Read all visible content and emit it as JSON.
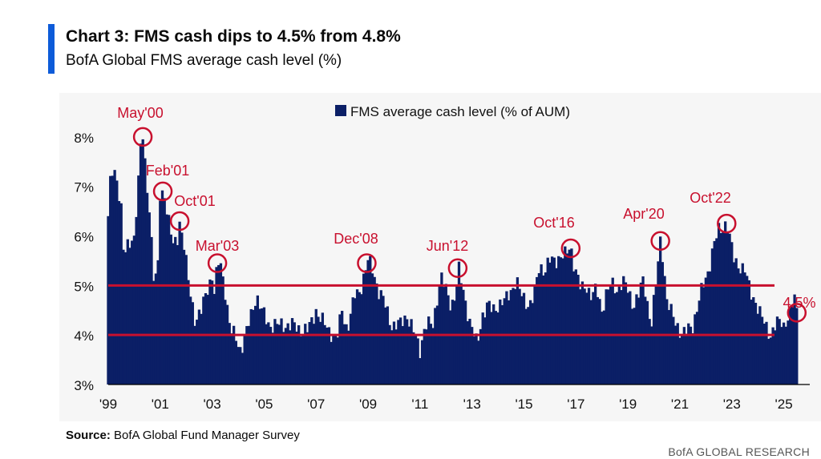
{
  "header": {
    "title": "Chart 3: FMS cash dips to 4.5% from 4.8%",
    "subtitle": "BofA Global FMS average cash level (%)"
  },
  "footer": {
    "source_label": "Source:",
    "source_text": " BofA Global Fund Manager Survey",
    "brand": "BofA GLOBAL RESEARCH"
  },
  "colors": {
    "bar": "#0b1f66",
    "reference_line": "#c8102e",
    "annotation": "#c8102e",
    "title_bar": "#0d5bd9"
  },
  "chart_data": {
    "type": "bar",
    "legend": "FMS average cash level (% of AUM)",
    "legend_position": "top-center",
    "ylim": [
      3,
      8.5
    ],
    "yticks": [
      3,
      4,
      5,
      6,
      7,
      8
    ],
    "ytick_labels": [
      "3%",
      "4%",
      "5%",
      "6%",
      "7%",
      "8%"
    ],
    "xlim": [
      1999.0,
      2026.0
    ],
    "xticks": [
      1999,
      2001,
      2003,
      2005,
      2007,
      2009,
      2011,
      2013,
      2015,
      2017,
      2019,
      2021,
      2023,
      2025
    ],
    "xtick_labels": [
      "'99",
      "'01",
      "'03",
      "'05",
      "'07",
      "'09",
      "'11",
      "'13",
      "'15",
      "'17",
      "'19",
      "'21",
      "'23",
      "'25"
    ],
    "reference_lines": [
      4.0,
      5.0
    ],
    "grid": false,
    "anchors": [
      [
        1999.0,
        6.4
      ],
      [
        1999.1,
        7.2
      ],
      [
        1999.2,
        7.3
      ],
      [
        1999.35,
        7.1
      ],
      [
        1999.5,
        6.6
      ],
      [
        1999.6,
        5.6
      ],
      [
        1999.8,
        5.8
      ],
      [
        2000.0,
        6.0
      ],
      [
        2000.15,
        7.0
      ],
      [
        2000.25,
        7.8
      ],
      [
        2000.33,
        8.0
      ],
      [
        2000.45,
        7.2
      ],
      [
        2000.6,
        6.5
      ],
      [
        2000.75,
        5.2
      ],
      [
        2000.9,
        5.1
      ],
      [
        2001.0,
        6.8
      ],
      [
        2001.15,
        6.9
      ],
      [
        2001.3,
        6.4
      ],
      [
        2001.5,
        5.8
      ],
      [
        2001.65,
        5.9
      ],
      [
        2001.75,
        6.3
      ],
      [
        2001.9,
        5.9
      ],
      [
        2002.1,
        5.0
      ],
      [
        2002.35,
        4.3
      ],
      [
        2002.6,
        4.5
      ],
      [
        2002.8,
        4.9
      ],
      [
        2003.0,
        5.2
      ],
      [
        2003.1,
        4.8
      ],
      [
        2003.2,
        5.4
      ],
      [
        2003.3,
        5.5
      ],
      [
        2003.5,
        4.9
      ],
      [
        2003.7,
        4.1
      ],
      [
        2003.9,
        3.95
      ],
      [
        2004.1,
        3.7
      ],
      [
        2004.3,
        4.0
      ],
      [
        2004.5,
        4.4
      ],
      [
        2004.7,
        4.8
      ],
      [
        2004.9,
        4.5
      ],
      [
        2005.2,
        4.2
      ],
      [
        2005.5,
        4.2
      ],
      [
        2005.8,
        4.2
      ],
      [
        2006.1,
        4.2
      ],
      [
        2006.4,
        4.1
      ],
      [
        2006.7,
        4.1
      ],
      [
        2007.0,
        4.5
      ],
      [
        2007.2,
        4.3
      ],
      [
        2007.5,
        4.1
      ],
      [
        2007.8,
        3.9
      ],
      [
        2008.0,
        4.5
      ],
      [
        2008.2,
        4.1
      ],
      [
        2008.5,
        4.8
      ],
      [
        2008.7,
        4.9
      ],
      [
        2008.85,
        5.2
      ],
      [
        2009.0,
        5.5
      ],
      [
        2009.2,
        5.3
      ],
      [
        2009.4,
        4.9
      ],
      [
        2009.6,
        4.7
      ],
      [
        2009.9,
        4.2
      ],
      [
        2010.2,
        4.2
      ],
      [
        2010.5,
        4.4
      ],
      [
        2010.8,
        4.0
      ],
      [
        2011.0,
        3.7
      ],
      [
        2011.2,
        4.2
      ],
      [
        2011.5,
        4.2
      ],
      [
        2011.8,
        5.2
      ],
      [
        2012.0,
        4.9
      ],
      [
        2012.2,
        4.6
      ],
      [
        2012.35,
        4.8
      ],
      [
        2012.5,
        5.3
      ],
      [
        2012.7,
        4.8
      ],
      [
        2012.9,
        4.3
      ],
      [
        2013.2,
        3.8
      ],
      [
        2013.4,
        4.4
      ],
      [
        2013.6,
        4.6
      ],
      [
        2013.8,
        4.5
      ],
      [
        2014.0,
        4.6
      ],
      [
        2014.3,
        4.7
      ],
      [
        2014.5,
        4.9
      ],
      [
        2014.7,
        5.1
      ],
      [
        2014.9,
        4.8
      ],
      [
        2015.2,
        4.6
      ],
      [
        2015.4,
        4.8
      ],
      [
        2015.6,
        5.4
      ],
      [
        2015.8,
        5.3
      ],
      [
        2016.0,
        5.5
      ],
      [
        2016.2,
        5.5
      ],
      [
        2016.4,
        5.6
      ],
      [
        2016.6,
        5.6
      ],
      [
        2016.8,
        5.8
      ],
      [
        2016.9,
        5.5
      ],
      [
        2017.0,
        5.3
      ],
      [
        2017.2,
        4.9
      ],
      [
        2017.4,
        5.0
      ],
      [
        2017.6,
        4.8
      ],
      [
        2017.8,
        4.9
      ],
      [
        2018.0,
        4.5
      ],
      [
        2018.2,
        4.9
      ],
      [
        2018.4,
        5.0
      ],
      [
        2018.6,
        4.9
      ],
      [
        2018.8,
        5.1
      ],
      [
        2019.0,
        4.9
      ],
      [
        2019.2,
        4.6
      ],
      [
        2019.4,
        4.8
      ],
      [
        2019.6,
        5.1
      ],
      [
        2019.8,
        4.5
      ],
      [
        2019.9,
        4.2
      ],
      [
        2020.1,
        5.1
      ],
      [
        2020.25,
        5.9
      ],
      [
        2020.35,
        5.6
      ],
      [
        2020.5,
        4.7
      ],
      [
        2020.7,
        4.4
      ],
      [
        2020.9,
        4.2
      ],
      [
        2021.1,
        4.0
      ],
      [
        2021.3,
        4.1
      ],
      [
        2021.5,
        4.2
      ],
      [
        2021.7,
        4.6
      ],
      [
        2021.9,
        5.0
      ],
      [
        2022.1,
        5.3
      ],
      [
        2022.3,
        5.8
      ],
      [
        2022.5,
        6.1
      ],
      [
        2022.7,
        6.2
      ],
      [
        2022.8,
        6.3
      ],
      [
        2022.9,
        6.0
      ],
      [
        2023.1,
        5.5
      ],
      [
        2023.3,
        5.4
      ],
      [
        2023.5,
        5.3
      ],
      [
        2023.7,
        4.9
      ],
      [
        2023.9,
        4.7
      ],
      [
        2024.1,
        4.4
      ],
      [
        2024.3,
        4.2
      ],
      [
        2024.5,
        4.0
      ],
      [
        2024.7,
        4.2
      ],
      [
        2024.9,
        4.3
      ],
      [
        2025.0,
        4.2
      ],
      [
        2025.1,
        4.3
      ],
      [
        2025.25,
        4.4
      ],
      [
        2025.4,
        4.8
      ],
      [
        2025.5,
        4.5
      ]
    ],
    "annotations": [
      {
        "label": "May'00",
        "x": 2000.33,
        "y": 8.0
      },
      {
        "label": "Feb'01",
        "x": 2001.1,
        "y": 6.9
      },
      {
        "label": "Oct'01",
        "x": 2001.75,
        "y": 6.3
      },
      {
        "label": "Mar'03",
        "x": 2003.2,
        "y": 5.45
      },
      {
        "label": "Dec'08",
        "x": 2008.95,
        "y": 5.45
      },
      {
        "label": "Jun'12",
        "x": 2012.45,
        "y": 5.35
      },
      {
        "label": "Oct'16",
        "x": 2016.8,
        "y": 5.75
      },
      {
        "label": "Apr'20",
        "x": 2020.25,
        "y": 5.9
      },
      {
        "label": "Oct'22",
        "x": 2022.8,
        "y": 6.25
      },
      {
        "label": "4.5%",
        "x": 2025.5,
        "y": 4.45
      }
    ]
  }
}
